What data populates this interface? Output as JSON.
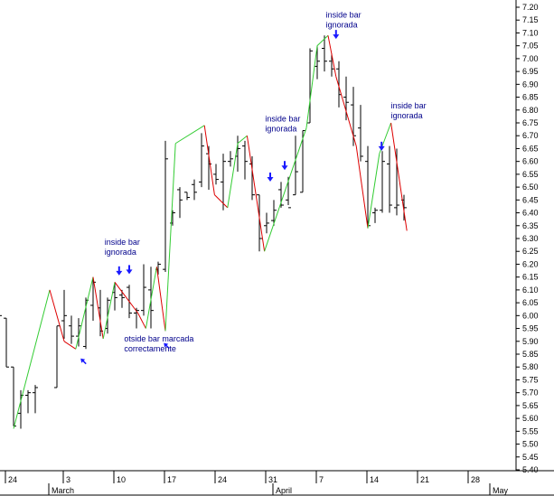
{
  "chart_data": {
    "type": "ohlc-bar-with-swing-lines",
    "ylim": [
      5.4,
      7.2
    ],
    "y_ticks": [
      "7.20",
      "7.15",
      "7.10",
      "7.05",
      "7.00",
      "6.95",
      "6.90",
      "6.85",
      "6.80",
      "6.75",
      "6.70",
      "6.65",
      "6.60",
      "6.55",
      "6.50",
      "6.45",
      "6.40",
      "6.35",
      "6.30",
      "6.25",
      "6.20",
      "6.15",
      "6.10",
      "6.05",
      "6.00",
      "5.95",
      "5.90",
      "5.85",
      "5.80",
      "5.75",
      "5.70",
      "5.65",
      "5.60",
      "5.55",
      "5.50",
      "5.45",
      "5.40"
    ],
    "x_day_ticks": [
      {
        "label": "24",
        "day": 0
      },
      {
        "label": "3",
        "day": 8
      },
      {
        "label": "10",
        "day": 15
      },
      {
        "label": "17",
        "day": 22
      },
      {
        "label": "24",
        "day": 29
      },
      {
        "label": "31",
        "day": 36
      },
      {
        "label": "7",
        "day": 43
      },
      {
        "label": "14",
        "day": 50
      },
      {
        "label": "21",
        "day": 57
      },
      {
        "label": "28",
        "day": 64
      }
    ],
    "x_month_ticks": [
      {
        "label": "March",
        "day": 6
      },
      {
        "label": "April",
        "day": 37
      },
      {
        "label": "May",
        "day": 67
      }
    ],
    "x_range_days": [
      -0.5,
      69.4
    ],
    "bars": [
      {
        "day": -1,
        "h": 6.03,
        "l": 5.93,
        "o": 5.98,
        "c": 6.0
      },
      {
        "day": 0,
        "h": 5.99,
        "l": 5.8,
        "o": 5.99,
        "c": 5.8
      },
      {
        "day": 1,
        "h": 5.8,
        "l": 5.57,
        "o": 5.8,
        "c": 5.57
      },
      {
        "day": 2,
        "h": 5.71,
        "l": 5.56,
        "o": 5.62,
        "c": 5.69
      },
      {
        "day": 3,
        "h": 5.71,
        "l": 5.62,
        "o": 5.69,
        "c": 5.7
      },
      {
        "day": 4,
        "h": 5.73,
        "l": 5.62,
        "o": 5.7,
        "c": 5.72
      },
      {
        "day": 7,
        "h": 5.96,
        "l": 5.72,
        "o": 5.72,
        "c": 5.96
      },
      {
        "day": 8,
        "h": 6.1,
        "l": 5.91,
        "o": 5.98,
        "c": 6.0
      },
      {
        "day": 9,
        "h": 6.0,
        "l": 5.89,
        "o": 5.96,
        "c": 5.92
      },
      {
        "day": 10,
        "h": 5.99,
        "l": 5.88,
        "o": 5.92,
        "c": 5.96
      },
      {
        "day": 11,
        "h": 6.07,
        "l": 5.87,
        "o": 5.88,
        "c": 6.06
      },
      {
        "day": 12,
        "h": 6.15,
        "l": 5.98,
        "o": 6.04,
        "c": 6.13
      },
      {
        "day": 13,
        "h": 6.1,
        "l": 5.92,
        "o": 6.03,
        "c": 5.94
      },
      {
        "day": 14,
        "h": 6.07,
        "l": 5.93,
        "o": 5.95,
        "c": 6.06
      },
      {
        "day": 15,
        "h": 6.13,
        "l": 6.02,
        "o": 6.09,
        "c": 6.07
      },
      {
        "day": 16,
        "h": 6.1,
        "l": 6.03,
        "o": 6.08,
        "c": 6.07
      },
      {
        "day": 17,
        "h": 6.12,
        "l": 5.99,
        "o": 6.11,
        "c": 6.01
      },
      {
        "day": 18,
        "h": 6.03,
        "l": 5.95,
        "o": 6.01,
        "c": 6.02
      },
      {
        "day": 19,
        "h": 6.2,
        "l": 6.0,
        "o": 6.02,
        "c": 6.11
      },
      {
        "day": 20,
        "h": 6.19,
        "l": 5.95,
        "o": 6.1,
        "c": 6.02
      },
      {
        "day": 21,
        "h": 6.21,
        "l": 6.16,
        "o": 6.18,
        "c": 6.2
      },
      {
        "day": 22,
        "h": 6.68,
        "l": 6.17,
        "o": 6.18,
        "c": 6.61
      },
      {
        "day": 23,
        "h": 6.41,
        "l": 6.35,
        "o": 6.36,
        "c": 6.4
      },
      {
        "day": 24,
        "h": 6.5,
        "l": 6.38,
        "o": 6.49,
        "c": 6.45
      },
      {
        "day": 25,
        "h": 6.48,
        "l": 6.45,
        "o": 6.48,
        "c": 6.46
      },
      {
        "day": 26,
        "h": 6.53,
        "l": 6.45,
        "o": 6.51,
        "c": 6.48
      },
      {
        "day": 27,
        "h": 6.71,
        "l": 6.5,
        "o": 6.52,
        "c": 6.66
      },
      {
        "day": 28,
        "h": 6.66,
        "l": 6.49,
        "o": 6.63,
        "c": 6.59
      },
      {
        "day": 29,
        "h": 6.59,
        "l": 6.51,
        "o": 6.55,
        "c": 6.53
      },
      {
        "day": 30,
        "h": 6.63,
        "l": 6.41,
        "o": 6.52,
        "c": 6.6
      },
      {
        "day": 31,
        "h": 6.64,
        "l": 6.58,
        "o": 6.6,
        "c": 6.61
      },
      {
        "day": 32,
        "h": 6.7,
        "l": 6.56,
        "o": 6.62,
        "c": 6.65
      },
      {
        "day": 33,
        "h": 6.68,
        "l": 6.53,
        "o": 6.66,
        "c": 6.6
      },
      {
        "day": 34,
        "h": 6.62,
        "l": 6.45,
        "o": 6.59,
        "c": 6.47
      },
      {
        "day": 35,
        "h": 6.47,
        "l": 6.25,
        "o": 6.47,
        "c": 6.3
      },
      {
        "day": 36,
        "h": 6.4,
        "l": 6.32,
        "o": 6.35,
        "c": 6.36
      },
      {
        "day": 37,
        "h": 6.45,
        "l": 6.35,
        "o": 6.37,
        "c": 6.41
      },
      {
        "day": 38,
        "h": 6.52,
        "l": 6.42,
        "o": 6.49,
        "c": 6.43
      },
      {
        "day": 39,
        "h": 6.54,
        "l": 6.43,
        "o": 6.45,
        "c": 6.42
      },
      {
        "day": 40,
        "h": 6.7,
        "l": 6.47,
        "o": 6.47,
        "c": 6.56
      },
      {
        "day": 41,
        "h": 6.72,
        "l": 6.48,
        "o": 6.48,
        "c": 6.72
      },
      {
        "day": 42,
        "h": 7.04,
        "l": 6.75,
        "o": 6.75,
        "c": 7.03
      },
      {
        "day": 43,
        "h": 7.05,
        "l": 6.92,
        "o": 6.97,
        "c": 6.99
      },
      {
        "day": 44,
        "h": 7.09,
        "l": 6.95,
        "o": 7.04,
        "c": 6.99
      },
      {
        "day": 45,
        "h": 7.02,
        "l": 6.93,
        "o": 6.99,
        "c": 6.96
      },
      {
        "day": 46,
        "h": 6.99,
        "l": 6.81,
        "o": 6.96,
        "c": 6.86
      },
      {
        "day": 47,
        "h": 6.93,
        "l": 6.76,
        "o": 6.85,
        "c": 6.83
      },
      {
        "day": 48,
        "h": 6.89,
        "l": 6.66,
        "o": 6.82,
        "c": 6.7
      },
      {
        "day": 49,
        "h": 6.82,
        "l": 6.6,
        "o": 6.73,
        "c": 6.62
      },
      {
        "day": 50,
        "h": 6.66,
        "l": 6.34,
        "o": 6.6,
        "c": 6.35
      },
      {
        "day": 51,
        "h": 6.42,
        "l": 6.36,
        "o": 6.4,
        "c": 6.41
      },
      {
        "day": 52,
        "h": 6.64,
        "l": 6.4,
        "o": 6.41,
        "c": 6.6
      },
      {
        "day": 53,
        "h": 6.66,
        "l": 6.4,
        "o": 6.59,
        "c": 6.43
      },
      {
        "day": 54,
        "h": 6.65,
        "l": 6.39,
        "o": 6.42,
        "c": 6.43
      },
      {
        "day": 55,
        "h": 6.47,
        "l": 6.37,
        "o": 6.45,
        "c": 6.42
      }
    ],
    "swing_lines": [
      {
        "color": "green",
        "from": [
          1,
          5.56
        ],
        "to": [
          6.0,
          6.1
        ]
      },
      {
        "color": "red",
        "from": [
          6.0,
          6.1
        ],
        "to": [
          8.0,
          5.9
        ]
      },
      {
        "color": "red",
        "from": [
          8.0,
          5.9
        ],
        "to": [
          9.6,
          5.87
        ]
      },
      {
        "color": "green",
        "from": [
          9.6,
          5.87
        ],
        "to": [
          12.0,
          6.15
        ]
      },
      {
        "color": "red",
        "from": [
          12.0,
          6.15
        ],
        "to": [
          13.4,
          5.91
        ]
      },
      {
        "color": "green",
        "from": [
          13.4,
          5.91
        ],
        "to": [
          15.0,
          6.13
        ]
      },
      {
        "color": "red",
        "from": [
          15.0,
          6.13
        ],
        "to": [
          18.2,
          6.01
        ]
      },
      {
        "color": "red",
        "from": [
          18.2,
          6.01
        ],
        "to": [
          19.3,
          5.95
        ]
      },
      {
        "color": "green",
        "from": [
          19.3,
          5.95
        ],
        "to": [
          20.8,
          6.19
        ]
      },
      {
        "color": "red",
        "from": [
          20.8,
          6.19
        ],
        "to": [
          22.0,
          5.94
        ]
      },
      {
        "color": "green",
        "from": [
          22.0,
          5.94
        ],
        "to": [
          23.4,
          6.67
        ]
      },
      {
        "color": "green",
        "from": [
          23.4,
          6.67
        ],
        "to": [
          27.4,
          6.74
        ]
      },
      {
        "color": "red",
        "from": [
          27.4,
          6.74
        ],
        "to": [
          28.8,
          6.47
        ]
      },
      {
        "color": "red",
        "from": [
          28.8,
          6.47
        ],
        "to": [
          30.6,
          6.42
        ]
      },
      {
        "color": "green",
        "from": [
          30.6,
          6.42
        ],
        "to": [
          32.0,
          6.67
        ]
      },
      {
        "color": "green",
        "from": [
          32.0,
          6.67
        ],
        "to": [
          33.3,
          6.7
        ]
      },
      {
        "color": "red",
        "from": [
          33.3,
          6.7
        ],
        "to": [
          35.7,
          6.25
        ]
      },
      {
        "color": "green",
        "from": [
          35.7,
          6.25
        ],
        "to": [
          41.5,
          6.73
        ]
      },
      {
        "color": "green",
        "from": [
          41.5,
          6.73
        ],
        "to": [
          43.0,
          7.05
        ]
      },
      {
        "color": "green",
        "from": [
          43.0,
          7.05
        ],
        "to": [
          44.5,
          7.09
        ]
      },
      {
        "color": "red",
        "from": [
          44.5,
          7.09
        ],
        "to": [
          45.6,
          6.93
        ]
      },
      {
        "color": "red",
        "from": [
          45.6,
          6.93
        ],
        "to": [
          48.4,
          6.66
        ]
      },
      {
        "color": "red",
        "from": [
          48.4,
          6.66
        ],
        "to": [
          50.0,
          6.34
        ]
      },
      {
        "color": "green",
        "from": [
          50.0,
          6.34
        ],
        "to": [
          51.6,
          6.63
        ]
      },
      {
        "color": "green",
        "from": [
          51.6,
          6.63
        ],
        "to": [
          53.2,
          6.75
        ]
      },
      {
        "color": "red",
        "from": [
          53.2,
          6.75
        ],
        "to": [
          55.4,
          6.33
        ]
      }
    ],
    "annotations": [
      {
        "lines": [
          "inside bar",
          "ignorada"
        ],
        "day": 14.1,
        "y": 6.275
      },
      {
        "lines": [
          "otside bar marcada",
          "correctamente"
        ],
        "day": 16.8,
        "y": 5.9
      },
      {
        "lines": [
          "inside bar",
          "ignorada"
        ],
        "day": 36.3,
        "y": 6.755
      },
      {
        "lines": [
          "inside bar",
          "ignorada"
        ],
        "day": 44.7,
        "y": 7.16
      },
      {
        "lines": [
          "inside bar",
          "ignorada"
        ],
        "day": 53.7,
        "y": 6.806
      }
    ],
    "arrows": [
      {
        "dir": "down",
        "day": 15.6,
        "y": 6.16
      },
      {
        "dir": "down",
        "day": 17.0,
        "y": 6.165
      },
      {
        "dir": "down",
        "day": 36.5,
        "y": 6.525
      },
      {
        "dir": "down",
        "day": 38.5,
        "y": 6.57
      },
      {
        "dir": "down",
        "day": 45.6,
        "y": 7.08
      },
      {
        "dir": "down",
        "day": 51.9,
        "y": 6.645
      },
      {
        "dir": "up-left",
        "day": 10.4,
        "y": 5.83
      },
      {
        "dir": "up-left",
        "day": 21.9,
        "y": 5.89
      }
    ],
    "colors": {
      "green": "#33cc33",
      "red": "#dd0000",
      "bar": "#000000",
      "annotation": "#00008b",
      "arrow": "#1a1aff"
    }
  }
}
